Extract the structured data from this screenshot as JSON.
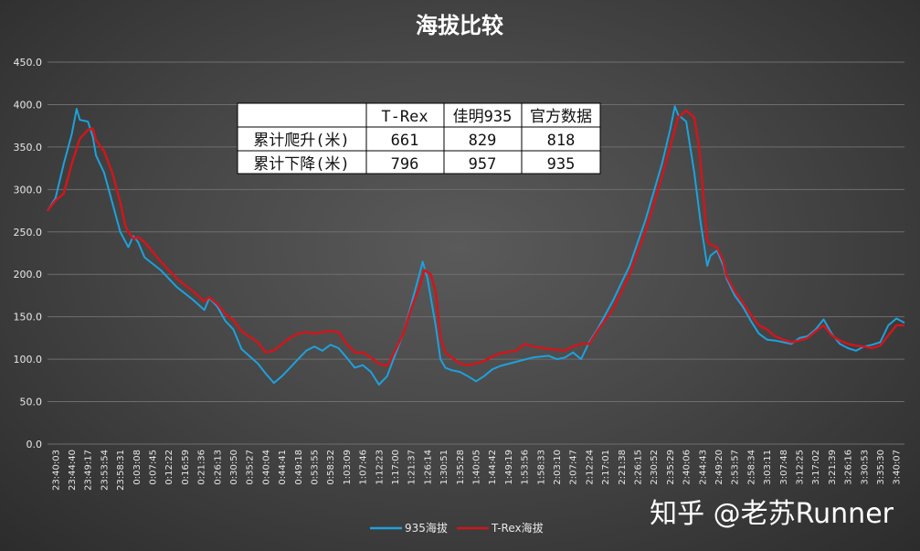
{
  "chart_data": {
    "type": "line",
    "title": "海拔比较",
    "xlabel": "",
    "ylabel": "",
    "ylim": [
      0,
      450
    ],
    "yticks": [
      "0.0",
      "50.0",
      "100.0",
      "150.0",
      "200.0",
      "250.0",
      "300.0",
      "350.0",
      "400.0",
      "450.0"
    ],
    "grid": true,
    "legend_position": "bottom",
    "x": [
      "23:40:03",
      "23:44:40",
      "23:49:17",
      "23:53:54",
      "23:58:31",
      "0:03:08",
      "0:07:45",
      "0:12:22",
      "0:16:59",
      "0:21:36",
      "0:26:13",
      "0:30:50",
      "0:35:27",
      "0:40:04",
      "0:44:41",
      "0:49:18",
      "0:53:55",
      "0:58:32",
      "1:03:09",
      "1:07:46",
      "1:12:23",
      "1:17:00",
      "1:21:37",
      "1:26:14",
      "1:30:51",
      "1:35:28",
      "1:40:05",
      "1:44:42",
      "1:49:19",
      "1:53:56",
      "1:58:33",
      "2:03:10",
      "2:07:47",
      "2:12:24",
      "2:17:01",
      "2:21:38",
      "2:26:15",
      "2:30:52",
      "2:35:29",
      "2:40:06",
      "2:44:43",
      "2:49:20",
      "2:53:57",
      "2:58:34",
      "3:03:11",
      "3:07:48",
      "3:12:25",
      "3:17:02",
      "3:21:39",
      "3:26:16",
      "3:30:53",
      "3:35:30",
      "3:40:07"
    ],
    "series": [
      {
        "name": "935海拔",
        "color": "#1ea1dc",
        "points": [
          [
            0,
            275
          ],
          [
            0.5,
            290
          ],
          [
            1,
            330
          ],
          [
            1.5,
            365
          ],
          [
            1.8,
            395
          ],
          [
            2,
            382
          ],
          [
            2.5,
            380
          ],
          [
            2.8,
            362
          ],
          [
            3,
            340
          ],
          [
            3.5,
            320
          ],
          [
            4,
            285
          ],
          [
            4.5,
            250
          ],
          [
            5,
            232
          ],
          [
            5.3,
            245
          ],
          [
            5.6,
            238
          ],
          [
            6,
            220
          ],
          [
            7,
            205
          ],
          [
            8,
            185
          ],
          [
            9,
            170
          ],
          [
            9.7,
            158
          ],
          [
            10,
            172
          ],
          [
            10.5,
            162
          ],
          [
            11,
            145
          ],
          [
            11.5,
            135
          ],
          [
            12,
            112
          ],
          [
            13,
            95
          ],
          [
            13.5,
            83
          ],
          [
            14,
            72
          ],
          [
            14.5,
            80
          ],
          [
            15,
            90
          ],
          [
            15.5,
            100
          ],
          [
            16,
            110
          ],
          [
            16.5,
            115
          ],
          [
            17,
            110
          ],
          [
            17.5,
            117
          ],
          [
            18,
            113
          ],
          [
            18.5,
            102
          ],
          [
            19,
            90
          ],
          [
            19.5,
            93
          ],
          [
            20,
            85
          ],
          [
            20.5,
            70
          ],
          [
            21,
            80
          ],
          [
            21.5,
            105
          ],
          [
            22,
            130
          ],
          [
            22.5,
            165
          ],
          [
            23,
            200
          ],
          [
            23.2,
            215
          ],
          [
            23.5,
            195
          ],
          [
            24,
            140
          ],
          [
            24.3,
            100
          ],
          [
            24.6,
            90
          ],
          [
            25,
            87
          ],
          [
            25.5,
            85
          ],
          [
            26,
            80
          ],
          [
            26.5,
            74
          ],
          [
            27,
            80
          ],
          [
            27.5,
            88
          ],
          [
            28,
            92
          ],
          [
            29,
            97
          ],
          [
            30,
            102
          ],
          [
            31,
            104
          ],
          [
            31.5,
            100
          ],
          [
            32,
            102
          ],
          [
            32.5,
            108
          ],
          [
            33,
            100
          ],
          [
            33.5,
            120
          ],
          [
            34,
            135
          ],
          [
            35,
            170
          ],
          [
            36,
            210
          ],
          [
            37,
            265
          ],
          [
            38,
            330
          ],
          [
            38.5,
            370
          ],
          [
            38.8,
            398
          ],
          [
            39,
            388
          ],
          [
            39.5,
            380
          ],
          [
            40,
            320
          ],
          [
            40.4,
            260
          ],
          [
            40.8,
            210
          ],
          [
            41,
            222
          ],
          [
            41.4,
            228
          ],
          [
            41.8,
            210
          ],
          [
            42,
            195
          ],
          [
            42.5,
            175
          ],
          [
            43,
            162
          ],
          [
            43.5,
            145
          ],
          [
            44,
            130
          ],
          [
            44.5,
            123
          ],
          [
            45,
            122
          ],
          [
            45.5,
            120
          ],
          [
            46,
            118
          ],
          [
            46.5,
            125
          ],
          [
            47,
            127
          ],
          [
            47.5,
            135
          ],
          [
            48,
            147
          ],
          [
            48.5,
            130
          ],
          [
            49,
            118
          ],
          [
            49.5,
            113
          ],
          [
            50,
            110
          ],
          [
            50.5,
            115
          ],
          [
            51,
            117
          ],
          [
            51.5,
            120
          ],
          [
            52,
            140
          ],
          [
            52.5,
            148
          ],
          [
            53,
            143
          ]
        ]
      },
      {
        "name": "T-Rex海拔",
        "color": "#d0161c",
        "points": [
          [
            0,
            275
          ],
          [
            0.5,
            287
          ],
          [
            1,
            295
          ],
          [
            1.5,
            330
          ],
          [
            2,
            360
          ],
          [
            2.5,
            370
          ],
          [
            2.8,
            372
          ],
          [
            3,
            358
          ],
          [
            3.5,
            345
          ],
          [
            4,
            320
          ],
          [
            4.5,
            285
          ],
          [
            4.8,
            258
          ],
          [
            5,
            250
          ],
          [
            5.3,
            242
          ],
          [
            5.6,
            244
          ],
          [
            6,
            238
          ],
          [
            7,
            215
          ],
          [
            8,
            195
          ],
          [
            9,
            180
          ],
          [
            9.7,
            168
          ],
          [
            10,
            173
          ],
          [
            10.5,
            165
          ],
          [
            11,
            153
          ],
          [
            11.5,
            146
          ],
          [
            12,
            133
          ],
          [
            13,
            120
          ],
          [
            13.5,
            108
          ],
          [
            14,
            110
          ],
          [
            14.5,
            118
          ],
          [
            15,
            125
          ],
          [
            15.5,
            130
          ],
          [
            16,
            132
          ],
          [
            16.5,
            130
          ],
          [
            17,
            132
          ],
          [
            17.5,
            133
          ],
          [
            18,
            132
          ],
          [
            18.5,
            118
          ],
          [
            19,
            108
          ],
          [
            19.5,
            108
          ],
          [
            20,
            102
          ],
          [
            20.5,
            95
          ],
          [
            21,
            92
          ],
          [
            21.5,
            110
          ],
          [
            22,
            130
          ],
          [
            22.5,
            160
          ],
          [
            23,
            185
          ],
          [
            23.3,
            205
          ],
          [
            23.7,
            200
          ],
          [
            24,
            180
          ],
          [
            24.3,
            125
          ],
          [
            24.6,
            108
          ],
          [
            25,
            102
          ],
          [
            25.5,
            95
          ],
          [
            26,
            93
          ],
          [
            26.5,
            95
          ],
          [
            27,
            98
          ],
          [
            27.5,
            103
          ],
          [
            28,
            107
          ],
          [
            29,
            110
          ],
          [
            29.5,
            118
          ],
          [
            30,
            115
          ],
          [
            31,
            112
          ],
          [
            32,
            110
          ],
          [
            32.5,
            115
          ],
          [
            33,
            118
          ],
          [
            33.5,
            118
          ],
          [
            34,
            133
          ],
          [
            35,
            160
          ],
          [
            36,
            200
          ],
          [
            37,
            252
          ],
          [
            38,
            315
          ],
          [
            38.5,
            350
          ],
          [
            39,
            385
          ],
          [
            39.5,
            393
          ],
          [
            40,
            385
          ],
          [
            40.3,
            350
          ],
          [
            40.6,
            285
          ],
          [
            40.8,
            240
          ],
          [
            41,
            235
          ],
          [
            41.4,
            232
          ],
          [
            41.8,
            215
          ],
          [
            42,
            198
          ],
          [
            42.5,
            180
          ],
          [
            43,
            167
          ],
          [
            43.5,
            152
          ],
          [
            44,
            140
          ],
          [
            44.5,
            135
          ],
          [
            45,
            127
          ],
          [
            45.5,
            123
          ],
          [
            46,
            120
          ],
          [
            46.5,
            122
          ],
          [
            47,
            125
          ],
          [
            47.5,
            133
          ],
          [
            48,
            140
          ],
          [
            48.5,
            128
          ],
          [
            49,
            122
          ],
          [
            49.5,
            118
          ],
          [
            50,
            116
          ],
          [
            50.5,
            115
          ],
          [
            51,
            113
          ],
          [
            51.5,
            116
          ],
          [
            52,
            128
          ],
          [
            52.5,
            140
          ],
          [
            53,
            140
          ]
        ]
      }
    ],
    "table": {
      "headers": [
        "",
        "T-Rex",
        "佳明935",
        "官方数据"
      ],
      "rows": [
        [
          "累计爬升(米)",
          "661",
          "829",
          "818"
        ],
        [
          "累计下降(米)",
          "796",
          "957",
          "935"
        ]
      ]
    }
  },
  "watermark": "知乎 @老苏Runner"
}
